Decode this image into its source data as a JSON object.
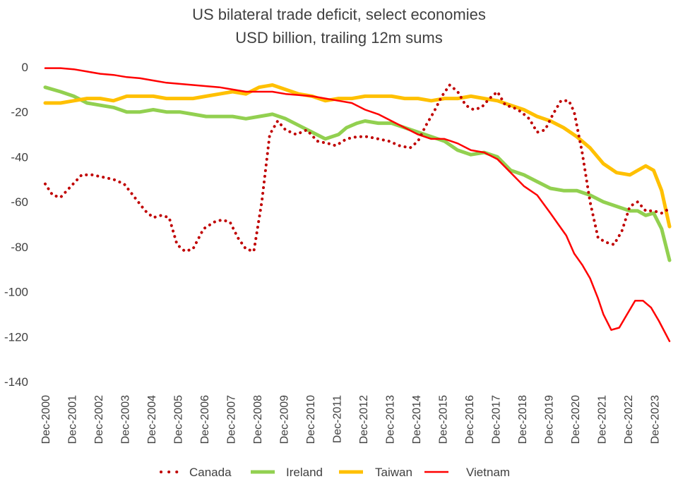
{
  "chart_data": {
    "type": "line",
    "title": "US bilateral trade deficit,  select economies",
    "subtitle": "USD billion, trailing 12m sums",
    "xlabel": "",
    "ylabel": "",
    "ylim": [
      -140,
      0
    ],
    "y_ticks": [
      0,
      -20,
      -40,
      -60,
      -80,
      -100,
      -120,
      -140
    ],
    "x_ticks": [
      "Dec-2000",
      "Dec-2001",
      "Dec-2002",
      "Dec-2003",
      "Dec-2004",
      "Dec-2005",
      "Dec-2006",
      "Dec-2007",
      "Dec-2008",
      "Dec-2009",
      "Dec-2010",
      "Dec-2011",
      "Dec-2012",
      "Dec-2013",
      "Dec-2014",
      "Dec-2015",
      "Dec-2016",
      "Dec-2017",
      "Dec-2018",
      "Dec-2019",
      "Dec-2020",
      "Dec-2021",
      "Dec-2022",
      "Dec-2023"
    ],
    "xlim": [
      2000.92,
      2024.5
    ],
    "grid": false,
    "legend_position": "bottom",
    "series": [
      {
        "name": "Canada",
        "color": "#c00000",
        "style": "dotted",
        "x": [
          2000.92,
          2001.2,
          2001.5,
          2001.9,
          2002.3,
          2002.7,
          2003.1,
          2003.5,
          2003.9,
          2004.3,
          2004.7,
          2005.0,
          2005.3,
          2005.6,
          2005.9,
          2006.2,
          2006.5,
          2006.9,
          2007.3,
          2007.6,
          2007.9,
          2008.2,
          2008.5,
          2008.8,
          2009.1,
          2009.4,
          2009.7,
          2010.0,
          2010.4,
          2010.8,
          2011.2,
          2011.6,
          2011.9,
          2012.3,
          2012.7,
          2013.1,
          2013.5,
          2013.9,
          2014.3,
          2014.7,
          2015.0,
          2015.3,
          2015.6,
          2015.9,
          2016.2,
          2016.5,
          2016.8,
          2017.1,
          2017.4,
          2017.7,
          2018.0,
          2018.3,
          2018.6,
          2018.9,
          2019.2,
          2019.5,
          2019.8,
          2020.1,
          2020.4,
          2020.7,
          2020.9,
          2021.2,
          2021.5,
          2021.8,
          2022.1,
          2022.4,
          2022.7,
          2023.0,
          2023.3,
          2023.6,
          2023.9,
          2024.2,
          2024.5
        ],
        "values": [
          -52,
          -57,
          -58,
          -53,
          -48,
          -48,
          -49,
          -50,
          -52,
          -58,
          -64,
          -67,
          -66,
          -67,
          -79,
          -82,
          -81,
          -72,
          -69,
          -68,
          -69,
          -76,
          -81,
          -82,
          -60,
          -30,
          -24,
          -28,
          -30,
          -28,
          -33,
          -34,
          -35,
          -32,
          -31,
          -31,
          -32,
          -33,
          -35,
          -36,
          -33,
          -26,
          -20,
          -13,
          -8,
          -11,
          -17,
          -19,
          -18,
          -14,
          -11,
          -17,
          -18,
          -20,
          -23,
          -29,
          -28,
          -21,
          -15,
          -15,
          -20,
          -38,
          -60,
          -76,
          -78,
          -79,
          -73,
          -62,
          -60,
          -64,
          -64,
          -65,
          -63
        ]
      },
      {
        "name": "Ireland",
        "color": "#92d050",
        "style": "solid",
        "x": [
          2000.92,
          2001.5,
          2002.0,
          2002.5,
          2003.0,
          2003.5,
          2004.0,
          2004.5,
          2005.0,
          2005.5,
          2006.0,
          2006.5,
          2007.0,
          2007.5,
          2008.0,
          2008.5,
          2009.0,
          2009.5,
          2010.0,
          2010.5,
          2011.0,
          2011.5,
          2012.0,
          2012.3,
          2012.7,
          2013.0,
          2013.5,
          2014.0,
          2014.5,
          2015.0,
          2015.5,
          2016.0,
          2016.5,
          2017.0,
          2017.5,
          2018.0,
          2018.5,
          2019.0,
          2019.5,
          2020.0,
          2020.5,
          2021.0,
          2021.5,
          2022.0,
          2022.5,
          2023.0,
          2023.3,
          2023.6,
          2023.9,
          2024.2,
          2024.5
        ],
        "values": [
          -9,
          -11,
          -13,
          -16,
          -17,
          -18,
          -20,
          -20,
          -19,
          -20,
          -20,
          -21,
          -22,
          -22,
          -22,
          -23,
          -22,
          -21,
          -23,
          -26,
          -29,
          -32,
          -30,
          -27,
          -25,
          -24,
          -25,
          -25,
          -27,
          -29,
          -31,
          -33,
          -37,
          -39,
          -38,
          -40,
          -46,
          -48,
          -51,
          -54,
          -55,
          -55,
          -57,
          -60,
          -62,
          -64,
          -64,
          -66,
          -65,
          -72,
          -86
        ]
      },
      {
        "name": "Taiwan",
        "color": "#ffc000",
        "style": "solid",
        "x": [
          2000.92,
          2001.5,
          2002.0,
          2002.5,
          2003.0,
          2003.5,
          2004.0,
          2004.5,
          2005.0,
          2005.5,
          2006.0,
          2006.5,
          2007.0,
          2007.5,
          2008.0,
          2008.5,
          2009.0,
          2009.5,
          2010.0,
          2010.5,
          2011.0,
          2011.5,
          2012.0,
          2012.5,
          2013.0,
          2013.5,
          2014.0,
          2014.5,
          2015.0,
          2015.5,
          2016.0,
          2016.5,
          2017.0,
          2017.5,
          2018.0,
          2018.5,
          2019.0,
          2019.5,
          2020.0,
          2020.5,
          2021.0,
          2021.5,
          2022.0,
          2022.5,
          2023.0,
          2023.3,
          2023.6,
          2023.9,
          2024.2,
          2024.5
        ],
        "values": [
          -16,
          -16,
          -15,
          -14,
          -14,
          -15,
          -13,
          -13,
          -13,
          -14,
          -14,
          -14,
          -13,
          -12,
          -11,
          -12,
          -9,
          -8,
          -10,
          -12,
          -13,
          -15,
          -14,
          -14,
          -13,
          -13,
          -13,
          -14,
          -14,
          -15,
          -14,
          -14,
          -13,
          -14,
          -15,
          -17,
          -19,
          -22,
          -24,
          -27,
          -31,
          -36,
          -43,
          -47,
          -48,
          -46,
          -44,
          -46,
          -55,
          -71
        ]
      },
      {
        "name": "Vietnam",
        "color": "#ff0000",
        "style": "solid",
        "x": [
          2000.92,
          2001.5,
          2002.0,
          2002.5,
          2003.0,
          2003.5,
          2004.0,
          2004.5,
          2005.0,
          2005.5,
          2006.0,
          2006.5,
          2007.0,
          2007.5,
          2008.0,
          2008.5,
          2009.0,
          2009.5,
          2010.0,
          2010.5,
          2011.0,
          2011.5,
          2012.0,
          2012.5,
          2013.0,
          2013.5,
          2014.0,
          2014.5,
          2015.0,
          2015.5,
          2016.0,
          2016.5,
          2017.0,
          2017.5,
          2018.0,
          2018.5,
          2019.0,
          2019.5,
          2020.0,
          2020.3,
          2020.6,
          2020.9,
          2021.2,
          2021.5,
          2021.8,
          2022.0,
          2022.3,
          2022.6,
          2022.9,
          2023.2,
          2023.5,
          2023.8,
          2024.1,
          2024.5
        ],
        "values": [
          -0.5,
          -0.5,
          -1,
          -2,
          -3,
          -3.5,
          -4.5,
          -5,
          -6,
          -7,
          -7.5,
          -8,
          -8.5,
          -9,
          -10,
          -11,
          -11,
          -11,
          -12,
          -12.5,
          -13,
          -14,
          -15,
          -16,
          -19,
          -21,
          -24,
          -27,
          -30,
          -32,
          -32,
          -34,
          -37,
          -38,
          -41,
          -47,
          -53,
          -57,
          -65,
          -70,
          -75,
          -83,
          -88,
          -94,
          -103,
          -110,
          -117,
          -116,
          -110,
          -104,
          -104,
          -107,
          -113,
          -122
        ]
      }
    ]
  }
}
